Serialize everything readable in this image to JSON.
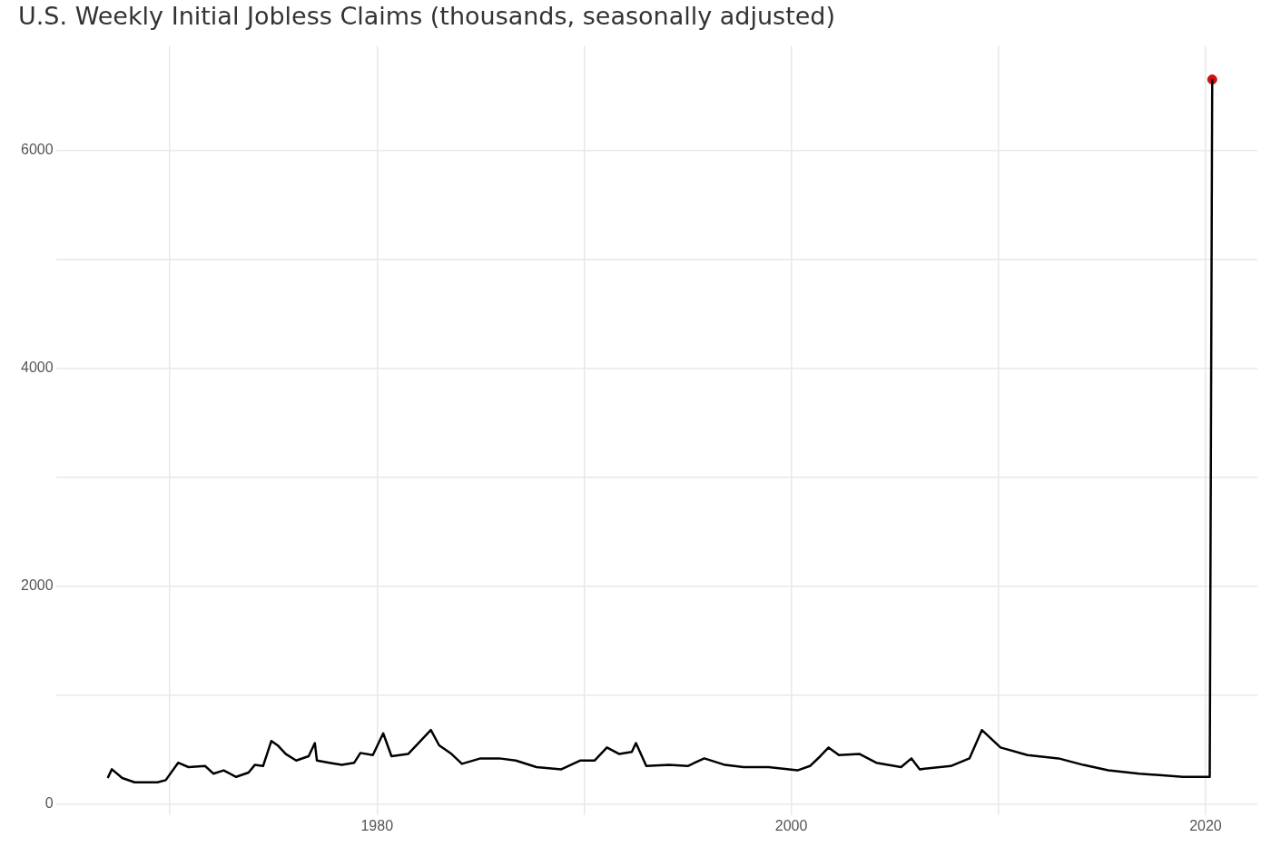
{
  "chart_data": {
    "type": "line",
    "title": "U.S. Weekly Initial Jobless Claims (thousands, seasonally adjusted)",
    "series": [
      {
        "color": "#000000",
        "x": [
          1967.0,
          1967.2,
          1967.7,
          1968.3,
          1969.4,
          1969.8,
          1970.4,
          1970.9,
          1971.7,
          1972.1,
          1972.6,
          1973.2,
          1973.8,
          1974.1,
          1974.5,
          1974.9,
          1975.2,
          1975.6,
          1976.1,
          1976.7,
          1977.0,
          1977.1,
          1977.7,
          1978.3,
          1978.9,
          1979.2,
          1979.8,
          1980.3,
          1980.7,
          1981.5,
          1982.0,
          1982.6,
          1983.0,
          1983.6,
          1984.1,
          1985.0,
          1985.9,
          1986.7,
          1987.7,
          1988.9,
          1989.8,
          1990.5,
          1991.1,
          1991.7,
          1992.3,
          1992.5,
          1993.0,
          1994.1,
          1995.0,
          1995.8,
          1996.8,
          1997.7,
          1998.9,
          2000.3,
          2000.9,
          2001.4,
          2001.8,
          2002.3,
          2003.3,
          2004.1,
          2005.3,
          2005.8,
          2006.2,
          2007.7,
          2008.6,
          2009.2,
          2010.1,
          2011.4,
          2012.9,
          2014.1,
          2015.3,
          2016.8,
          2018.2,
          2018.9,
          2020.2,
          2020.32
        ],
        "values": [
          240,
          320,
          240,
          200,
          200,
          220,
          380,
          340,
          350,
          280,
          310,
          250,
          290,
          360,
          350,
          580,
          540,
          460,
          400,
          440,
          560,
          400,
          380,
          360,
          380,
          470,
          450,
          650,
          440,
          460,
          560,
          680,
          540,
          460,
          370,
          420,
          420,
          400,
          340,
          320,
          400,
          400,
          520,
          460,
          480,
          560,
          350,
          360,
          350,
          420,
          360,
          340,
          340,
          310,
          350,
          440,
          520,
          450,
          460,
          380,
          340,
          420,
          320,
          350,
          420,
          680,
          520,
          450,
          420,
          360,
          310,
          280,
          260,
          250,
          250,
          6650
        ],
        "marker": "none"
      },
      {
        "type": "scatter",
        "color": "#cc1111",
        "x": [
          2020.32
        ],
        "values": [
          6650
        ],
        "marker": "circle"
      }
    ],
    "xlim": [
      1964.5,
      2022.5
    ],
    "xticks": [
      {
        "value": 1970,
        "label": null
      },
      1980,
      {
        "value": 1990,
        "label": null
      },
      2000,
      {
        "value": 2010,
        "label": null
      },
      2020
    ],
    "ylim": [
      -100,
      6960
    ],
    "yticks": [
      0,
      {
        "value": 1000,
        "label": null
      },
      2000,
      {
        "value": 3000,
        "label": null
      },
      4000,
      {
        "value": 5000,
        "label": null
      },
      6000
    ],
    "grid": true,
    "legend": false,
    "line_style": "solid"
  }
}
